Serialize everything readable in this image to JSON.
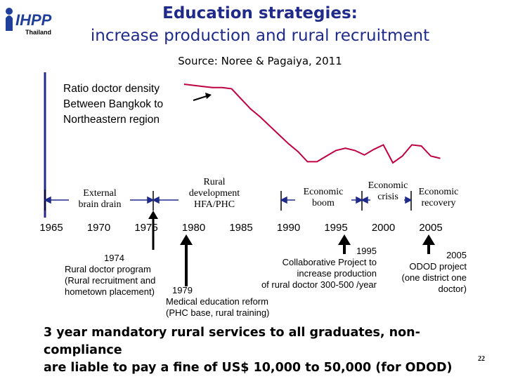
{
  "logo": {
    "text": "IHPP",
    "sub": "Thailand",
    "icon": "ihpp-logo"
  },
  "header": {
    "title": "Education strategies:",
    "subtitle": "increase production and rural recruitment",
    "source": "Source: Noree & Pagaiya, 2011"
  },
  "chart_data": {
    "type": "line",
    "title": "Ratio doctor density Between Bangkok to Northeastern region",
    "title_lines": [
      "Ratio doctor density",
      "Between Bangkok to",
      "Northeastern region"
    ],
    "x_ticks": [
      1965,
      1970,
      1975,
      1980,
      1985,
      1990,
      1995,
      2000,
      2005
    ],
    "xlim": [
      1963,
      2008
    ],
    "series": [
      {
        "x": [
          1979,
          1980,
          1981,
          1982,
          1983,
          1984,
          1985,
          1986,
          1987,
          1988,
          1989,
          1990,
          1991,
          1992,
          1993,
          1994,
          1995,
          1996,
          1997,
          1998,
          1999,
          2000,
          2001,
          2002,
          2003,
          2004,
          2005,
          2006
        ],
        "y": [
          1.0,
          0.99,
          0.98,
          0.97,
          0.97,
          0.96,
          0.87,
          0.78,
          0.71,
          0.63,
          0.55,
          0.47,
          0.4,
          0.31,
          0.31,
          0.36,
          0.41,
          0.43,
          0.41,
          0.37,
          0.42,
          0.46,
          0.3,
          0.36,
          0.46,
          0.45,
          0.36,
          0.34
        ]
      }
    ],
    "color": "#c00040"
  },
  "eras": {
    "brain_drain": [
      "External",
      "brain drain"
    ],
    "rural_dev": [
      "Rural",
      "development",
      "HFA/PHC"
    ],
    "econ_boom": [
      "Economic",
      "boom"
    ],
    "econ_crisis": [
      "Economic",
      "crisis"
    ],
    "econ_recovery": [
      "Economic",
      "recovery"
    ]
  },
  "events": {
    "e1974": [
      "1974",
      "Rural doctor program",
      "(Rural recruitment and",
      "hometown placement)"
    ],
    "e1979_year": "1979",
    "e1979": [
      "Medical education reform",
      "(PHC base, rural training)"
    ],
    "e1995": [
      "1995",
      "Collaborative Project to",
      "increase production",
      "of rural doctor 300-500 /year"
    ],
    "e2005": [
      "2005",
      "ODOD project",
      "(one district one",
      "doctor)"
    ]
  },
  "footer": {
    "line1": "3 year mandatory rural services to all graduates, non-compliance",
    "line2": "are liable to pay a fine of US$ 10,000 to 50,000 (for ODOD)"
  },
  "page_number": "22"
}
